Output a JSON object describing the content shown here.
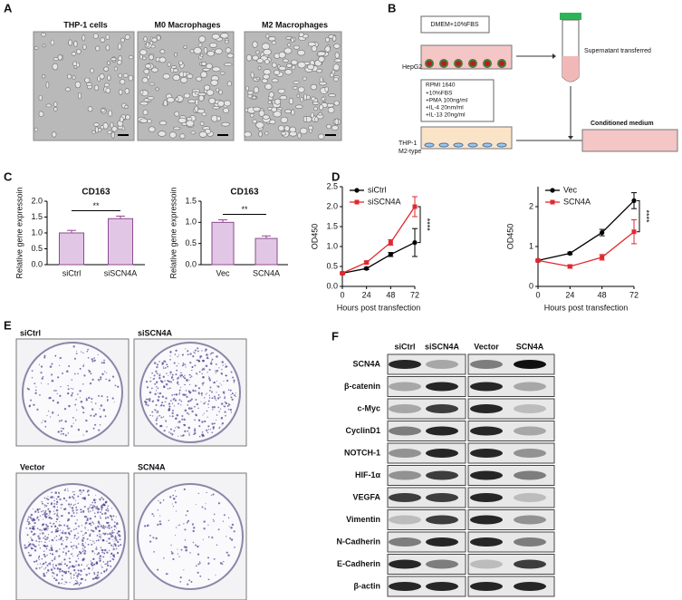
{
  "panel_labels": [
    "A",
    "B",
    "C",
    "D",
    "E",
    "F"
  ],
  "panel_a": {
    "images": [
      "THP-1 cells",
      "M0 Macrophages",
      "M2 Macrophages"
    ]
  },
  "panel_b": {
    "top_medium": "DMEM+10%FBS",
    "top_cells": "HepG2",
    "transfer": "Supernatant transferred",
    "bottom_medium": [
      "RPMI 1640",
      "+10%FBS",
      "+PMA 100ng/ml",
      "+IL-4 20nm/ml",
      "+IL-13 20ng/ml"
    ],
    "bottom_cells": [
      "THP-1",
      "M2-type"
    ],
    "result": "Conditioned medium"
  },
  "chart_data": [
    {
      "type": "bar",
      "title": "CD163",
      "y_label": "Relative gene expressoin",
      "categories": [
        "siCtrl",
        "siSCN4A"
      ],
      "values": [
        1.0,
        1.45
      ],
      "errors": [
        0.08,
        0.08
      ],
      "color": "#e2c6e6",
      "edge_color": "#8e4a8e",
      "ylim": [
        0,
        2.0
      ],
      "yticks": [
        {
          "value": 0,
          "label": "0.0"
        },
        0.5,
        {
          "value": 1,
          "label": "1.0"
        },
        1.5,
        {
          "value": 2,
          "label": "2.0"
        }
      ],
      "annotation": "**"
    },
    {
      "type": "bar",
      "title": "CD163",
      "y_label": "Relative gene expressoin",
      "categories": [
        "Vec",
        "SCN4A"
      ],
      "values": [
        1.0,
        0.62
      ],
      "errors": [
        0.06,
        0.06
      ],
      "color": "#e2c6e6",
      "edge_color": "#8e4a8e",
      "ylim": [
        0,
        1.5
      ],
      "yticks": [
        {
          "value": 0,
          "label": "0.0"
        },
        0.5,
        {
          "value": 1,
          "label": "1.0"
        },
        1.5
      ],
      "annotation": "**"
    },
    {
      "type": "line",
      "x_label": "Hours post transfection",
      "y_label": "OD450",
      "x": [
        0,
        24,
        48,
        72
      ],
      "xlim": [
        0,
        72
      ],
      "xticks": [
        0,
        24,
        48,
        72
      ],
      "ylim": [
        0,
        2.5
      ],
      "yticks": [
        {
          "value": 0,
          "label": "0.0"
        },
        0.5,
        {
          "value": 1,
          "label": "1.0"
        },
        1.5,
        {
          "value": 2,
          "label": "2.0"
        },
        2.5
      ],
      "series": [
        {
          "name": "siCtrl",
          "color": "#000000",
          "values": [
            0.33,
            0.45,
            0.8,
            1.1
          ],
          "errors": [
            0.02,
            0.03,
            0.05,
            0.35
          ]
        },
        {
          "name": "siSCN4A",
          "color": "#e0282e",
          "values": [
            0.33,
            0.6,
            1.1,
            2.0
          ],
          "errors": [
            0.02,
            0.03,
            0.07,
            0.25
          ]
        }
      ],
      "annotation": "****"
    },
    {
      "type": "line",
      "x_label": "Hours post transfection",
      "y_label": "OD450",
      "x": [
        0,
        24,
        48,
        72
      ],
      "xlim": [
        0,
        72
      ],
      "xticks": [
        0,
        24,
        48,
        72
      ],
      "ylim": [
        0,
        2.5
      ],
      "yticks": [
        0,
        1,
        2
      ],
      "series": [
        {
          "name": "Vec",
          "color": "#000000",
          "values": [
            0.65,
            0.83,
            1.35,
            2.15
          ],
          "errors": [
            0.02,
            0.03,
            0.08,
            0.2
          ]
        },
        {
          "name": "SCN4A",
          "color": "#e0282e",
          "values": [
            0.65,
            0.5,
            0.73,
            1.37
          ],
          "errors": [
            0.02,
            0.04,
            0.07,
            0.3
          ]
        }
      ],
      "annotation": "****"
    }
  ],
  "panel_e": {
    "plates": [
      "siCtrl",
      "siSCN4A",
      "Vector",
      "SCN4A"
    ]
  },
  "panel_f": {
    "columns": [
      "siCtrl",
      "siSCN4A",
      "Vector",
      "SCN4A"
    ],
    "rows": [
      "SCN4A",
      "β-catenin",
      "c-Myc",
      "CyclinD1",
      "NOTCH-1",
      "HIF-1α",
      "VEGFA",
      "Vimentin",
      "N-Cadherin",
      "E-Cadherin",
      "β-actin"
    ]
  }
}
